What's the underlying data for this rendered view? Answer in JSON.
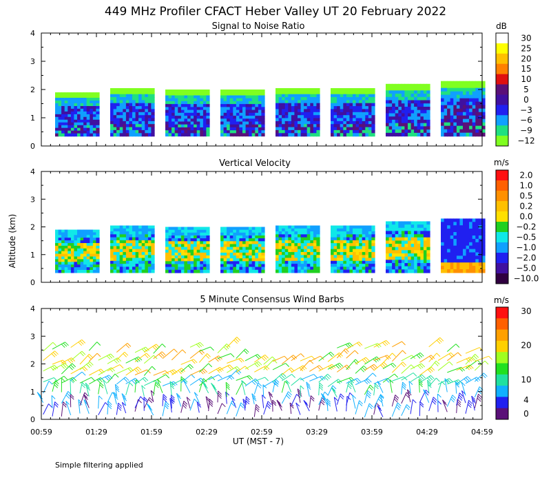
{
  "title": "449 MHz Profiler CFACT Heber Valley UT 20 February 2022",
  "ylabel": "Altitude (km)",
  "xlabel": "UT   (MST - 7)",
  "footnote": "Simple filtering applied",
  "x_ticks": [
    "00:59",
    "01:29",
    "01:59",
    "02:29",
    "02:59",
    "03:29",
    "03:59",
    "04:29",
    "04:59"
  ],
  "y_ticks": [
    "0",
    "1",
    "2",
    "3",
    "4"
  ],
  "ylim": [
    0,
    4
  ],
  "chart_data": [
    {
      "type": "heatmap",
      "title": "Signal to Noise Ratio",
      "unit": "dB",
      "ylabel": "Altitude (km)",
      "ylim": [
        0,
        4
      ],
      "colorbar": {
        "labels": [
          "30",
          "25",
          "20",
          "15",
          "10",
          "5",
          "0",
          "−3",
          "−6",
          "−9",
          "−12"
        ],
        "colors": [
          "#ffffff",
          "#ffff00",
          "#ffc000",
          "#ff8000",
          "#e01010",
          "#5a1078",
          "#4010a0",
          "#2020f0",
          "#10a0ff",
          "#20e080",
          "#80ff20"
        ]
      },
      "profile_blocks": [
        {
          "start": "00:59",
          "end": "01:23",
          "top_km": 1.9
        },
        {
          "start": "01:29",
          "end": "01:53",
          "top_km": 2.05
        },
        {
          "start": "01:59",
          "end": "02:23",
          "top_km": 2.0
        },
        {
          "start": "02:29",
          "end": "02:53",
          "top_km": 2.0
        },
        {
          "start": "02:59",
          "end": "03:23",
          "top_km": 2.05
        },
        {
          "start": "03:29",
          "end": "03:53",
          "top_km": 2.05
        },
        {
          "start": "03:59",
          "end": "04:23",
          "top_km": 2.2
        },
        {
          "start": "04:29",
          "end": "04:53",
          "top_km": 2.3
        }
      ],
      "bottom_km": 0.35
    },
    {
      "type": "heatmap",
      "title": "Vertical Velocity",
      "unit": "m/s",
      "ylabel": "Altitude (km)",
      "ylim": [
        0,
        4
      ],
      "colorbar": {
        "labels": [
          "2.0",
          "1.0",
          "0.5",
          "0.2",
          "0.0",
          "−0.2",
          "−0.5",
          "−1.0",
          "−2.0",
          "−5.0",
          "−10.0"
        ],
        "colors": [
          "#ff1010",
          "#ff6000",
          "#ff9000",
          "#ffc000",
          "#ffe000",
          "#20d020",
          "#10e8e8",
          "#10a0ff",
          "#2020f0",
          "#4010a0",
          "#300040"
        ]
      },
      "profile_blocks": [
        {
          "start": "00:59",
          "end": "01:23",
          "top_km": 1.9
        },
        {
          "start": "01:29",
          "end": "01:53",
          "top_km": 2.05
        },
        {
          "start": "01:59",
          "end": "02:23",
          "top_km": 2.0
        },
        {
          "start": "02:29",
          "end": "02:53",
          "top_km": 2.0
        },
        {
          "start": "02:59",
          "end": "03:23",
          "top_km": 2.05
        },
        {
          "start": "03:29",
          "end": "03:53",
          "top_km": 2.05
        },
        {
          "start": "03:59",
          "end": "04:23",
          "top_km": 2.2
        },
        {
          "start": "04:29",
          "end": "04:53",
          "top_km": 2.3
        }
      ],
      "bottom_km": 0.35
    },
    {
      "type": "scatter",
      "title": "5 Minute Consensus Wind Barbs",
      "unit": "m/s",
      "ylabel": "Altitude (km)",
      "ylim": [
        0,
        4
      ],
      "colorbar": {
        "labels": [
          "30",
          "20",
          "10",
          "4",
          "0"
        ],
        "values": [
          30,
          20,
          10,
          4,
          0
        ],
        "colors": [
          "#ff1010",
          "#ff6000",
          "#ffa000",
          "#ffd000",
          "#a0ff20",
          "#20e020",
          "#20e0a0",
          "#10b0ff",
          "#2020f0",
          "#5a1078"
        ]
      },
      "barb_levels_km": [
        0.2,
        0.5,
        0.9,
        1.3,
        1.7,
        2.1,
        2.5
      ]
    }
  ]
}
